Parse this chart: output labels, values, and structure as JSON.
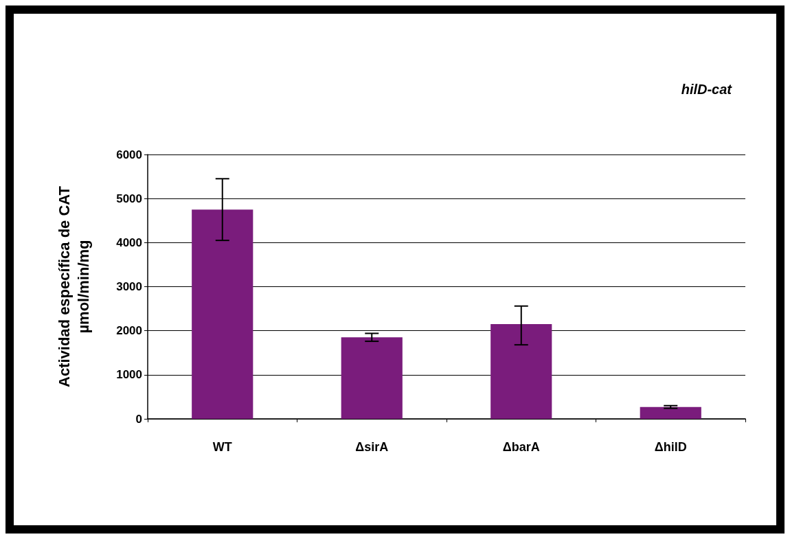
{
  "chart_data": {
    "type": "bar",
    "title": "hilD-cat",
    "ylabel": "Actividad específica de CAT\nµmol/min/mg",
    "categories": [
      "WT",
      "ΔsirA",
      "ΔbarA",
      "ΔhilD"
    ],
    "values": [
      4750,
      1850,
      2150,
      270
    ],
    "errors": [
      700,
      90,
      [
        1680,
        2560
      ],
      30
    ],
    "color": "#7a1c7c",
    "ylim": [
      0,
      6000
    ],
    "yticks": [
      0,
      1000,
      2000,
      3000,
      4000,
      5000,
      6000
    ],
    "grid": "y"
  }
}
